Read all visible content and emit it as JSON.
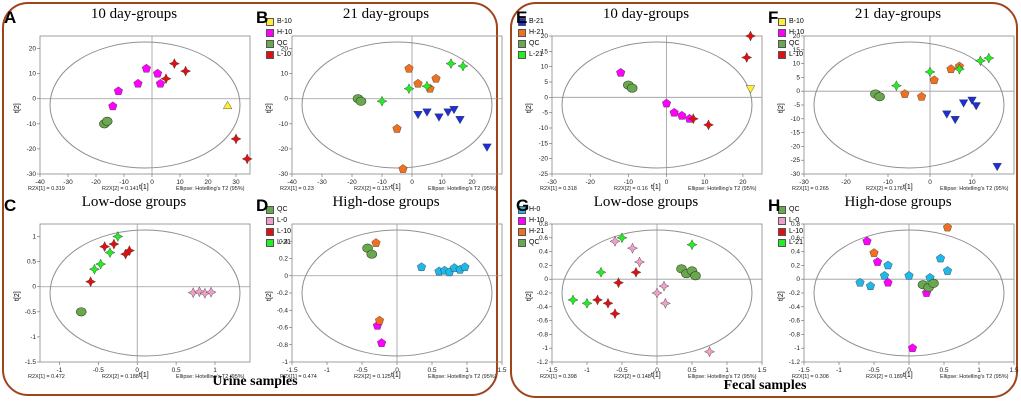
{
  "sections": [
    {
      "name": "urine",
      "label": "Urine samples"
    },
    {
      "name": "fecal",
      "label": "Fecal samples"
    }
  ],
  "colors": {
    "frame": "#a0441c",
    "B": "#1c2fd8",
    "H": "#ff00ff",
    "QC": "#6aa84f",
    "L": "#e01010",
    "L21": "#22ee22",
    "H21": "#f07020",
    "L0": "#f0a0c8",
    "H0": "#20b8e8",
    "B10": "#ffee33"
  },
  "footer_labels": {
    "ellipse": "Ellipse: Hotelling's T2 (95%)"
  },
  "chart_data": [
    {
      "id": "A",
      "title": "10 day-groups",
      "type": "scatter",
      "xlabel": "t[1]",
      "ylabel": "t[2]",
      "xlim": [
        -40,
        35
      ],
      "ylim": [
        -30,
        25
      ],
      "xticks": [
        -40,
        -30,
        -20,
        -10,
        0,
        10,
        20,
        30
      ],
      "yticks": [
        -30,
        -20,
        -10,
        0,
        10,
        20
      ],
      "r2x1": "R2X[1] = 0.319",
      "r2x2": "R2X[2] = 0.141",
      "series": [
        {
          "name": "B-10",
          "color": "#ffee33",
          "marker": "triangle",
          "x": [
            27
          ],
          "y": [
            -3
          ]
        },
        {
          "name": "H-10",
          "color": "#ff00ff",
          "marker": "pentagon",
          "x": [
            -14,
            -12,
            -5,
            -2,
            2,
            3
          ],
          "y": [
            -3,
            3,
            6,
            12,
            10,
            6
          ]
        },
        {
          "name": "QC",
          "color": "#6aa84f",
          "marker": "blob",
          "x": [
            -17,
            -16
          ],
          "y": [
            -10,
            -9
          ]
        },
        {
          "name": "L-10",
          "color": "#e01010",
          "marker": "star",
          "x": [
            5,
            8,
            12,
            30,
            34
          ],
          "y": [
            8,
            14,
            11,
            -16,
            -24
          ]
        }
      ]
    },
    {
      "id": "B",
      "title": "21 day-groups",
      "type": "scatter",
      "xlabel": "t[1]",
      "ylabel": "t[2]",
      "xlim": [
        -40,
        30
      ],
      "ylim": [
        -30,
        25
      ],
      "xticks": [
        -40,
        -30,
        -20,
        -10,
        0,
        10,
        20
      ],
      "yticks": [
        -30,
        -20,
        -10,
        0,
        10,
        20
      ],
      "r2x1": "R2X[1] = 0.23",
      "r2x2": "R2X[2] = 0.157",
      "series": [
        {
          "name": "B-21",
          "color": "#1c2fd8",
          "marker": "triangle-down",
          "x": [
            2,
            5,
            9,
            12,
            14,
            16,
            25
          ],
          "y": [
            -6,
            -5,
            -7,
            -5,
            -4,
            -8,
            -19
          ]
        },
        {
          "name": "H-21",
          "color": "#f07020",
          "marker": "pentagon",
          "x": [
            -5,
            -3,
            -1,
            2,
            6,
            8
          ],
          "y": [
            -12,
            -28,
            12,
            6,
            4,
            8
          ]
        },
        {
          "name": "QC",
          "color": "#6aa84f",
          "marker": "blob",
          "x": [
            -18,
            -17
          ],
          "y": [
            0,
            -1
          ]
        },
        {
          "name": "L-21",
          "color": "#22ee22",
          "marker": "star",
          "x": [
            -10,
            -1,
            5,
            13,
            17
          ],
          "y": [
            -1,
            4,
            5,
            14,
            13
          ]
        }
      ]
    },
    {
      "id": "C",
      "title": "Low-dose groups",
      "type": "scatter",
      "xlabel": "t[1]",
      "ylabel": "t[2]",
      "xlim": [
        -1.25,
        1.45
      ],
      "ylim": [
        -1.5,
        1.25
      ],
      "xticks": [
        -1,
        -0.5,
        0,
        0.5,
        1
      ],
      "yticks": [
        -1.5,
        -1,
        -0.5,
        0,
        0.5,
        1
      ],
      "r2x1": "R2X[1] = 0.472",
      "r2x2": "R2X[2] = 0.188",
      "series": [
        {
          "name": "QC",
          "color": "#6aa84f",
          "marker": "blob",
          "x": [
            -0.72
          ],
          "y": [
            -0.5
          ]
        },
        {
          "name": "L-0",
          "color": "#f0a0c8",
          "marker": "star",
          "x": [
            0.72,
            0.8,
            0.87,
            0.95
          ],
          "y": [
            -0.12,
            -0.1,
            -0.13,
            -0.11
          ]
        },
        {
          "name": "L-10",
          "color": "#e01010",
          "marker": "star",
          "x": [
            -0.6,
            -0.42,
            -0.3,
            -0.15,
            -0.1
          ],
          "y": [
            0.1,
            0.8,
            0.85,
            0.65,
            0.72
          ]
        },
        {
          "name": "L-21",
          "color": "#22ee22",
          "marker": "star",
          "x": [
            -0.55,
            -0.47,
            -0.35,
            -0.25
          ],
          "y": [
            0.35,
            0.45,
            0.68,
            1.0
          ]
        }
      ]
    },
    {
      "id": "D",
      "title": "High-dose groups",
      "type": "scatter",
      "xlabel": "t[1]",
      "ylabel": "t[2]",
      "xlim": [
        -1.5,
        1.5
      ],
      "ylim": [
        -1,
        0.6
      ],
      "xticks": [
        -1.5,
        -1,
        -0.5,
        0,
        0.5,
        1,
        1.5
      ],
      "yticks": [
        -1,
        -0.8,
        -0.6,
        -0.4,
        -0.2,
        0,
        0.2,
        0.4
      ],
      "r2x1": "R2X[1] = 0.474",
      "r2x2": "R2X[2] = 0.125",
      "series": [
        {
          "name": "H-0",
          "color": "#20b8e8",
          "marker": "pentagon",
          "x": [
            0.35,
            0.6,
            0.68,
            0.75,
            0.82,
            0.9,
            0.97
          ],
          "y": [
            0.1,
            0.05,
            0.06,
            0.04,
            0.09,
            0.07,
            0.1
          ]
        },
        {
          "name": "H-10",
          "color": "#ff00ff",
          "marker": "pentagon",
          "x": [
            -0.28,
            -0.22
          ],
          "y": [
            -0.58,
            -0.78
          ]
        },
        {
          "name": "H-21",
          "color": "#f07020",
          "marker": "pentagon",
          "x": [
            -0.3,
            -0.25
          ],
          "y": [
            0.38,
            -0.52
          ]
        },
        {
          "name": "QC",
          "color": "#6aa84f",
          "marker": "blob",
          "x": [
            -0.42,
            -0.36
          ],
          "y": [
            0.32,
            0.25
          ]
        }
      ]
    },
    {
      "id": "E",
      "title": "10 day-groups",
      "type": "scatter",
      "xlabel": "t[1]",
      "ylabel": "t[2]",
      "xlim": [
        -30,
        25
      ],
      "ylim": [
        -25,
        20
      ],
      "xticks": [
        -30,
        -20,
        -10,
        0,
        10,
        20
      ],
      "yticks": [
        -25,
        -20,
        -15,
        -10,
        -5,
        0,
        5,
        10,
        15,
        20
      ],
      "r2x1": "R2X[1] = 0.318",
      "r2x2": "R2X[2] = 0.16",
      "series": [
        {
          "name": "B-10",
          "color": "#ffee33",
          "marker": "triangle-down",
          "x": [
            22
          ],
          "y": [
            3
          ]
        },
        {
          "name": "H-10",
          "color": "#ff00ff",
          "marker": "pentagon",
          "x": [
            -12,
            0,
            2,
            4,
            6
          ],
          "y": [
            8,
            -2,
            -5,
            -6,
            -7
          ]
        },
        {
          "name": "QC",
          "color": "#6aa84f",
          "marker": "blob",
          "x": [
            -10,
            -9
          ],
          "y": [
            4,
            3
          ]
        },
        {
          "name": "L-10",
          "color": "#e01010",
          "marker": "star",
          "x": [
            7,
            11,
            21,
            22
          ],
          "y": [
            -7,
            -9,
            13,
            20
          ]
        }
      ]
    },
    {
      "id": "F",
      "title": "21 day-groups",
      "type": "scatter",
      "xlabel": "t[1]",
      "ylabel": "t[2]",
      "xlim": [
        -30,
        20
      ],
      "ylim": [
        -30,
        20
      ],
      "xticks": [
        -30,
        -20,
        -10,
        0,
        10
      ],
      "yticks": [
        -30,
        -25,
        -20,
        -15,
        -10,
        -5,
        0,
        5,
        10,
        15,
        20
      ],
      "r2x1": "R2X[1] = 0.265",
      "r2x2": "R2X[2] = 0.176",
      "series": [
        {
          "name": "B-21",
          "color": "#1c2fd8",
          "marker": "triangle-down",
          "x": [
            4,
            6,
            8,
            10,
            11,
            16
          ],
          "y": [
            -8,
            -10,
            -4,
            -3,
            -5,
            -27
          ]
        },
        {
          "name": "H-21",
          "color": "#f07020",
          "marker": "pentagon",
          "x": [
            -6,
            -2,
            1,
            5,
            7
          ],
          "y": [
            -1,
            -2,
            4,
            8,
            9
          ]
        },
        {
          "name": "QC",
          "color": "#6aa84f",
          "marker": "blob",
          "x": [
            -13,
            -12
          ],
          "y": [
            -1,
            -2
          ]
        },
        {
          "name": "L-21",
          "color": "#22ee22",
          "marker": "star",
          "x": [
            -8,
            0,
            7,
            12,
            14
          ],
          "y": [
            2,
            7,
            8,
            11,
            12
          ]
        }
      ]
    },
    {
      "id": "G",
      "title": "Low-dose groups",
      "type": "scatter",
      "xlabel": "t[1]",
      "ylabel": "t[2]",
      "xlim": [
        -1.5,
        1.5
      ],
      "ylim": [
        -1.2,
        0.8
      ],
      "xticks": [
        -1.5,
        -1,
        -0.5,
        0,
        0.5,
        1,
        1.5
      ],
      "yticks": [
        -1.2,
        -1,
        -0.8,
        -0.6,
        -0.4,
        -0.2,
        0,
        0.2,
        0.4,
        0.6,
        0.8
      ],
      "r2x1": "R2X[1] = 0.398",
      "r2x2": "R2X[2] = 0.148",
      "series": [
        {
          "name": "QC",
          "color": "#6aa84f",
          "marker": "blob",
          "x": [
            0.35,
            0.42,
            0.5,
            0.55
          ],
          "y": [
            0.15,
            0.08,
            0.12,
            0.05
          ]
        },
        {
          "name": "L-0",
          "color": "#f0a0c8",
          "marker": "star",
          "x": [
            -0.6,
            -0.35,
            -0.25,
            0,
            0.1,
            0.12,
            0.75
          ],
          "y": [
            0.55,
            0.45,
            0.25,
            -0.2,
            -0.1,
            -0.35,
            -1.05
          ]
        },
        {
          "name": "L-10",
          "color": "#e01010",
          "marker": "star",
          "x": [
            -0.85,
            -0.7,
            -0.6,
            -0.55,
            -0.3
          ],
          "y": [
            -0.3,
            -0.35,
            -0.5,
            -0.05,
            0.1
          ]
        },
        {
          "name": "L-21",
          "color": "#22ee22",
          "marker": "star",
          "x": [
            -1.2,
            -1.0,
            -0.8,
            -0.5,
            0.5
          ],
          "y": [
            -0.3,
            -0.35,
            0.1,
            0.6,
            0.5
          ]
        }
      ]
    },
    {
      "id": "H",
      "title": "High-dose groups",
      "type": "scatter",
      "xlabel": "t[1]",
      "ylabel": "t[2]",
      "xlim": [
        -1.5,
        1.5
      ],
      "ylim": [
        -1.2,
        0.8
      ],
      "xticks": [
        -1.5,
        -1,
        -0.5,
        0,
        0.5,
        1,
        1.5
      ],
      "yticks": [
        -1.2,
        -1,
        -0.8,
        -0.6,
        -0.4,
        -0.2,
        0,
        0.2,
        0.4,
        0.6,
        0.8
      ],
      "r2x1": "R2X[1] = 0.308",
      "r2x2": "R2X[2] = 0.189",
      "series": [
        {
          "name": "H-0",
          "color": "#20b8e8",
          "marker": "pentagon",
          "x": [
            -0.7,
            -0.55,
            -0.35,
            -0.3,
            0,
            0.3,
            0.45,
            0.55
          ],
          "y": [
            -0.05,
            -0.1,
            0.05,
            0.2,
            0.05,
            0.02,
            0.3,
            0.12
          ]
        },
        {
          "name": "H-10",
          "color": "#ff00ff",
          "marker": "pentagon",
          "x": [
            -0.6,
            -0.45,
            -0.3,
            0.05,
            0.25
          ],
          "y": [
            0.55,
            0.25,
            -0.05,
            -1.0,
            -0.2
          ]
        },
        {
          "name": "H-21",
          "color": "#f07020",
          "marker": "pentagon",
          "x": [
            -0.5,
            0.55
          ],
          "y": [
            0.38,
            0.75
          ]
        },
        {
          "name": "QC",
          "color": "#6aa84f",
          "marker": "blob",
          "x": [
            0.2,
            0.28,
            0.35
          ],
          "y": [
            -0.08,
            -0.12,
            -0.06
          ]
        }
      ]
    }
  ]
}
